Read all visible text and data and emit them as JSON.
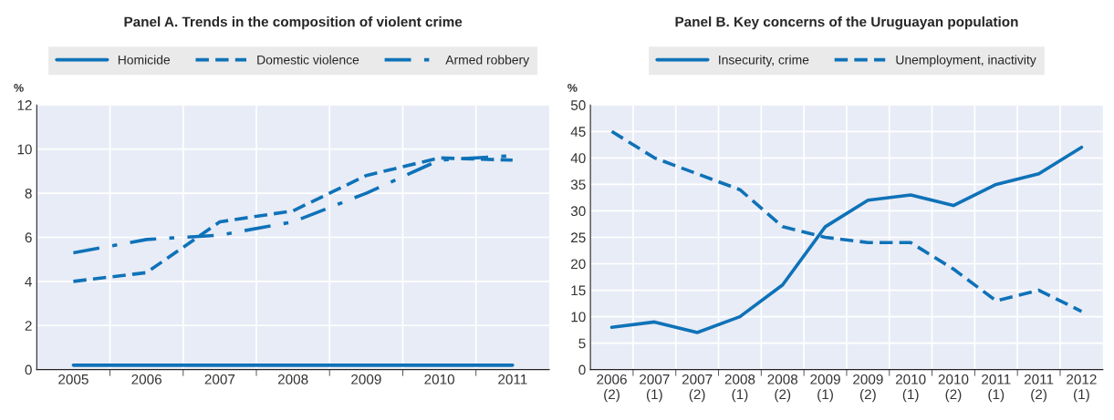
{
  "chart_data": [
    {
      "type": "line",
      "title": "Panel A. Trends in the composition of violent crime",
      "ylabel": "%",
      "categories": [
        "2005",
        "2006",
        "2007",
        "2008",
        "2009",
        "2010",
        "2011"
      ],
      "ylim": [
        0,
        12
      ],
      "yticks": [
        0,
        2,
        4,
        6,
        8,
        10,
        12
      ],
      "grid": true,
      "legend": "top",
      "marker": "none",
      "series": [
        {
          "name": "Homicide",
          "color": "#0f72b8",
          "line_style": "solid",
          "values": [
            0.2,
            0.2,
            0.2,
            0.2,
            0.2,
            0.2,
            0.2
          ]
        },
        {
          "name": "Domestic violence",
          "color": "#0f72b8",
          "line_style": "dashed",
          "values": [
            4.0,
            4.4,
            6.7,
            7.2,
            8.8,
            9.6,
            9.5
          ]
        },
        {
          "name": "Armed robbery",
          "color": "#0f72b8",
          "line_style": "dashdot",
          "values": [
            5.3,
            5.9,
            6.1,
            6.7,
            8.0,
            9.5,
            9.7
          ]
        }
      ]
    },
    {
      "type": "line",
      "title": "Panel B. Key concerns of the Uruguayan population",
      "ylabel": "%",
      "categories": [
        "2006\n(2)",
        "2007\n(1)",
        "2007\n(2)",
        "2008\n(1)",
        "2008\n(2)",
        "2009\n(1)",
        "2009\n(2)",
        "2010\n(1)",
        "2010\n(2)",
        "2011\n(1)",
        "2011\n(2)",
        "2012\n(1)"
      ],
      "ylim": [
        0,
        50
      ],
      "yticks": [
        0,
        5,
        10,
        15,
        20,
        25,
        30,
        35,
        40,
        45,
        50
      ],
      "grid": true,
      "legend": "top",
      "marker": "none",
      "series": [
        {
          "name": "Insecurity, crime",
          "color": "#0f72b8",
          "line_style": "solid",
          "values": [
            8,
            9,
            7,
            10,
            16,
            27,
            32,
            33,
            31,
            35,
            37,
            42
          ]
        },
        {
          "name": "Unemployment, inactivity",
          "color": "#0f72b8",
          "line_style": "dashed",
          "values": [
            45,
            40,
            37,
            34,
            27,
            25,
            24,
            24,
            19,
            13,
            15,
            11
          ]
        }
      ]
    }
  ]
}
